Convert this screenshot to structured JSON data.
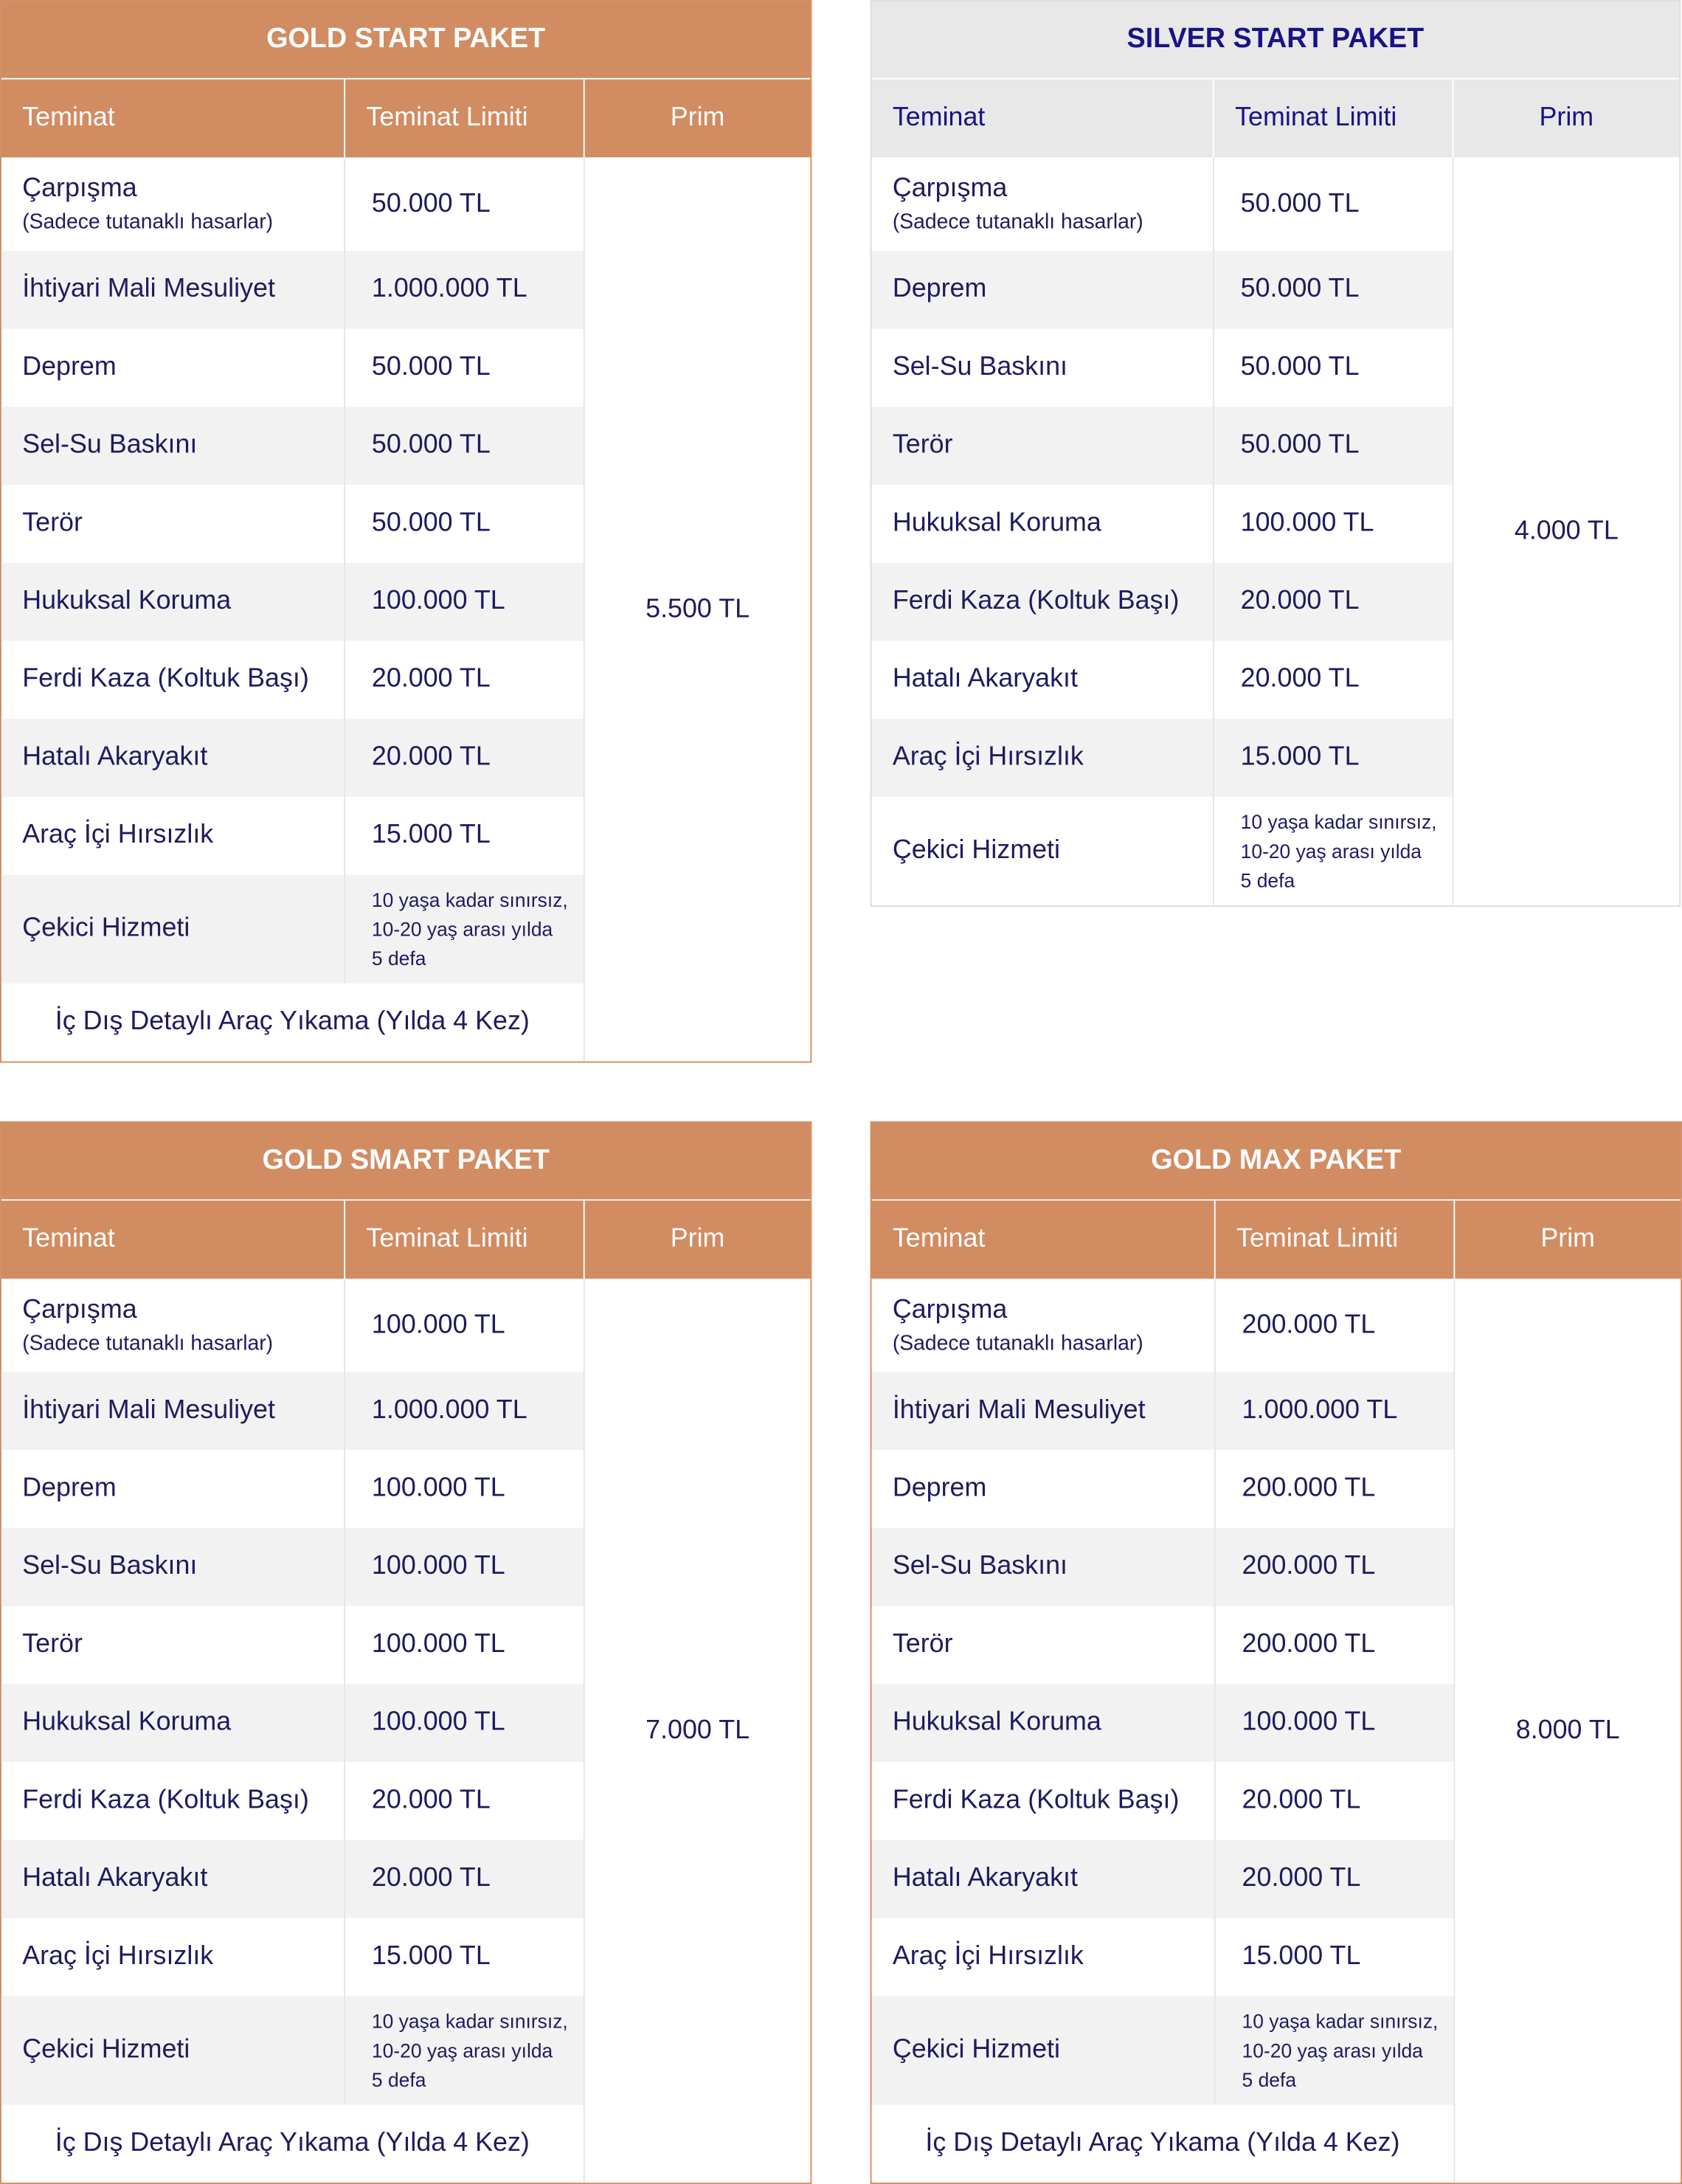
{
  "tables": [
    {
      "title": "GOLD START PAKET",
      "theme": "gold",
      "headers": [
        "Teminat",
        "Teminat Limiti",
        "Prim"
      ],
      "rows": [
        {
          "coverage": "Çarpışma",
          "note": "(Sadece tutanaklı hasarlar)",
          "limit": "50.000 TL"
        },
        {
          "coverage": "İhtiyari Mali Mesuliyet",
          "limit": "1.000.000 TL"
        },
        {
          "coverage": "Deprem",
          "limit": "50.000 TL"
        },
        {
          "coverage": "Sel-Su Baskını",
          "limit": "50.000 TL"
        },
        {
          "coverage": "Terör",
          "limit": "50.000 TL"
        },
        {
          "coverage": "Hukuksal Koruma",
          "limit": "100.000 TL"
        },
        {
          "coverage": "Ferdi Kaza (Koltuk Başı)",
          "limit": "20.000 TL"
        },
        {
          "coverage": "Hatalı Akaryakıt",
          "limit": "20.000 TL"
        },
        {
          "coverage": "Araç İçi Hırsızlık",
          "limit": "15.000 TL"
        },
        {
          "coverage": "Çekici Hizmeti",
          "limit": [
            "10 yaşa kadar sınırsız,",
            "10-20 yaş arası yılda",
            "5 defa"
          ]
        }
      ],
      "extra": "İç Dış Detaylı Araç Yıkama (Yılda 4 Kez)",
      "prim": "5.500 TL"
    },
    {
      "title": "SILVER START PAKET",
      "theme": "silver",
      "headers": [
        "Teminat",
        "Teminat Limiti",
        "Prim"
      ],
      "rows": [
        {
          "coverage": "Çarpışma",
          "note": "(Sadece tutanaklı hasarlar)",
          "limit": "50.000 TL"
        },
        {
          "coverage": "Deprem",
          "limit": "50.000 TL"
        },
        {
          "coverage": "Sel-Su Baskını",
          "limit": "50.000 TL"
        },
        {
          "coverage": "Terör",
          "limit": "50.000 TL"
        },
        {
          "coverage": "Hukuksal Koruma",
          "limit": "100.000 TL"
        },
        {
          "coverage": "Ferdi Kaza (Koltuk Başı)",
          "limit": "20.000 TL"
        },
        {
          "coverage": "Hatalı Akaryakıt",
          "limit": "20.000 TL"
        },
        {
          "coverage": "Araç İçi Hırsızlık",
          "limit": "15.000 TL"
        },
        {
          "coverage": "Çekici Hizmeti",
          "limit": [
            "10 yaşa kadar sınırsız,",
            "10-20 yaş arası yılda",
            "5 defa"
          ]
        }
      ],
      "prim": "4.000 TL"
    },
    {
      "title": "GOLD SMART PAKET",
      "theme": "gold",
      "headers": [
        "Teminat",
        "Teminat Limiti",
        "Prim"
      ],
      "rows": [
        {
          "coverage": "Çarpışma",
          "note": "(Sadece tutanaklı hasarlar)",
          "limit": "100.000 TL"
        },
        {
          "coverage": "İhtiyari Mali Mesuliyet",
          "limit": "1.000.000 TL"
        },
        {
          "coverage": "Deprem",
          "limit": "100.000 TL"
        },
        {
          "coverage": "Sel-Su Baskını",
          "limit": "100.000 TL"
        },
        {
          "coverage": "Terör",
          "limit": "100.000 TL"
        },
        {
          "coverage": "Hukuksal Koruma",
          "limit": "100.000 TL"
        },
        {
          "coverage": "Ferdi Kaza (Koltuk Başı)",
          "limit": "20.000 TL"
        },
        {
          "coverage": "Hatalı Akaryakıt",
          "limit": "20.000 TL"
        },
        {
          "coverage": "Araç İçi Hırsızlık",
          "limit": "15.000 TL"
        },
        {
          "coverage": "Çekici Hizmeti",
          "limit": [
            "10 yaşa kadar sınırsız,",
            "10-20 yaş arası yılda",
            "5 defa"
          ]
        }
      ],
      "extra": "İç Dış Detaylı Araç Yıkama (Yılda 4 Kez)",
      "prim": "7.000 TL"
    },
    {
      "title": "GOLD MAX PAKET",
      "theme": "gold",
      "headers": [
        "Teminat",
        "Teminat Limiti",
        "Prim"
      ],
      "rows": [
        {
          "coverage": "Çarpışma",
          "note": "(Sadece tutanaklı hasarlar)",
          "limit": "200.000 TL"
        },
        {
          "coverage": "İhtiyari Mali Mesuliyet",
          "limit": "1.000.000 TL"
        },
        {
          "coverage": "Deprem",
          "limit": "200.000 TL"
        },
        {
          "coverage": "Sel-Su Baskını",
          "limit": "200.000 TL"
        },
        {
          "coverage": "Terör",
          "limit": "200.000 TL"
        },
        {
          "coverage": "Hukuksal Koruma",
          "limit": "100.000 TL"
        },
        {
          "coverage": "Ferdi Kaza (Koltuk Başı)",
          "limit": "20.000 TL"
        },
        {
          "coverage": "Hatalı Akaryakıt",
          "limit": "20.000 TL"
        },
        {
          "coverage": "Araç İçi Hırsızlık",
          "limit": "15.000 TL"
        },
        {
          "coverage": "Çekici Hizmeti",
          "limit": [
            "10 yaşa kadar sınırsız,",
            "10-20 yaş arası yılda",
            "5 defa"
          ]
        }
      ],
      "extra": "İç Dış Detaylı Araç Yıkama (Yılda 4 Kez)",
      "prim": "8.000 TL"
    }
  ]
}
